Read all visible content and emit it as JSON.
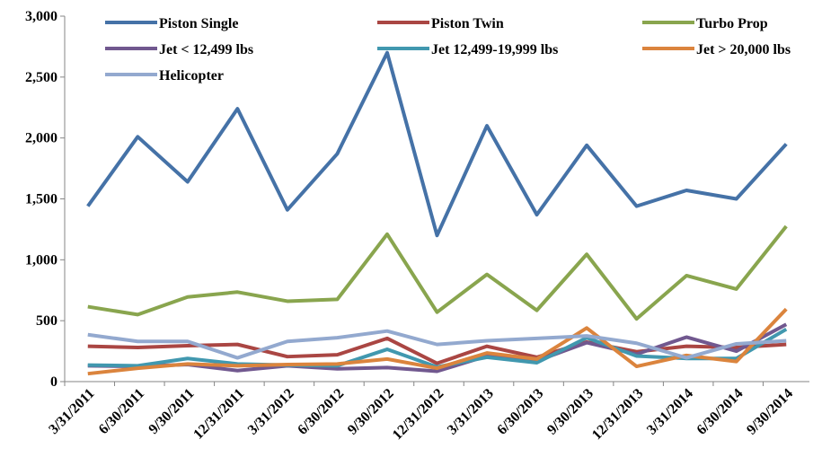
{
  "chart_data": {
    "type": "line",
    "categories": [
      "3/31/2011",
      "6/30/2011",
      "9/30/2011",
      "12/31/2011",
      "3/31/2012",
      "6/30/2012",
      "9/30/2012",
      "12/31/2012",
      "3/31/2013",
      "6/30/2013",
      "9/30/2013",
      "12/31/2013",
      "3/31/2014",
      "6/30/2014",
      "9/30/2014"
    ],
    "series": [
      {
        "name": "Piston Single",
        "color": "#4572a7",
        "values": [
          1440,
          2010,
          1640,
          2240,
          1410,
          1870,
          2700,
          1200,
          2100,
          1370,
          1940,
          1440,
          1570,
          1500,
          1950
        ]
      },
      {
        "name": "Piston Twin",
        "color": "#aa4643",
        "values": [
          290,
          280,
          295,
          305,
          205,
          220,
          355,
          150,
          290,
          200,
          325,
          245,
          290,
          280,
          305
        ]
      },
      {
        "name": "Turbo Prop",
        "color": "#89a54e",
        "values": [
          615,
          550,
          695,
          735,
          660,
          675,
          1210,
          570,
          880,
          585,
          1045,
          515,
          870,
          760,
          1275
        ]
      },
      {
        "name": "Jet < 12,499 lbs",
        "color": "#71588f",
        "values": [
          130,
          125,
          140,
          90,
          130,
          105,
          115,
          85,
          210,
          170,
          320,
          225,
          365,
          250,
          470
        ]
      },
      {
        "name": "Jet 12,499-19,999 lbs",
        "color": "#4198af",
        "values": [
          135,
          130,
          190,
          145,
          135,
          130,
          265,
          120,
          200,
          155,
          360,
          210,
          190,
          190,
          430
        ]
      },
      {
        "name": "Jet > 20,000 lbs",
        "color": "#db843d",
        "values": [
          65,
          110,
          145,
          130,
          140,
          145,
          185,
          110,
          235,
          185,
          440,
          125,
          215,
          165,
          595
        ]
      },
      {
        "name": "Helicopter",
        "color": "#93a9cf",
        "values": [
          385,
          330,
          330,
          195,
          330,
          360,
          415,
          305,
          335,
          355,
          375,
          315,
          195,
          310,
          335
        ]
      }
    ],
    "ylim": [
      0,
      3000
    ],
    "yticks": [
      0,
      500,
      {
        "value": 1000,
        "label": "1,000"
      },
      {
        "value": 1500,
        "label": "1,500"
      },
      {
        "value": 2000,
        "label": "2,000"
      },
      {
        "value": 2500,
        "label": "2,500"
      },
      {
        "value": 3000,
        "label": "3,000"
      }
    ],
    "grid": false,
    "legend": "top"
  }
}
